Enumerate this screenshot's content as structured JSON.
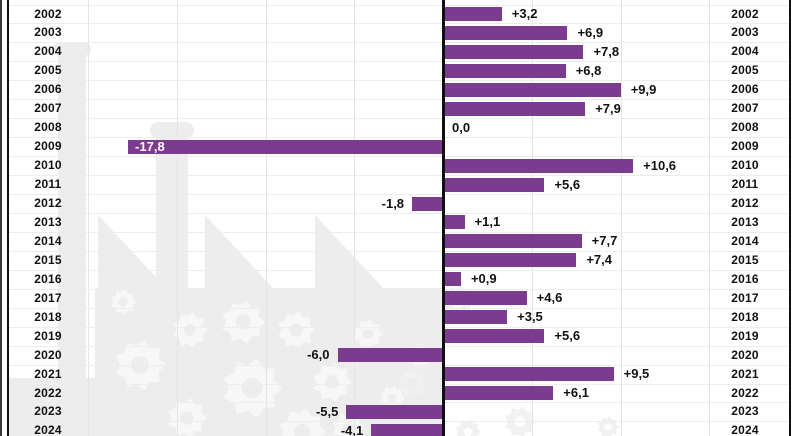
{
  "chart_data": {
    "type": "bar",
    "orientation": "horizontal-diverging",
    "title": "",
    "categories": [
      "2002",
      "2003",
      "2004",
      "2005",
      "2006",
      "2007",
      "2008",
      "2009",
      "2010",
      "2011",
      "2012",
      "2013",
      "2014",
      "2015",
      "2016",
      "2017",
      "2018",
      "2019",
      "2020",
      "2021",
      "2022",
      "2023",
      "2024"
    ],
    "values": [
      3.2,
      6.9,
      7.8,
      6.8,
      9.9,
      7.9,
      0.0,
      -17.8,
      10.6,
      5.6,
      -1.8,
      1.1,
      7.7,
      7.4,
      0.9,
      4.6,
      3.5,
      5.6,
      -6.0,
      9.5,
      6.1,
      -5.5,
      -4.1
    ],
    "value_labels": [
      "+3,2",
      "+6,9",
      "+7,8",
      "+6,8",
      "+9,9",
      "+7,9",
      "0,0",
      "-17,8",
      "+10,6",
      "+5,6",
      "-1,8",
      "+1,1",
      "+7,7",
      "+7,4",
      "+0,9",
      "+4,6",
      "+3,5",
      "+5,6",
      "-6,0",
      "+9,5",
      "+6,1",
      "-5,5",
      "-4,1"
    ],
    "decimal_separator": ",",
    "xlim": [
      -20,
      20
    ],
    "gridline_step": 5,
    "grid": true,
    "legend": "none",
    "year_labels_both_sides": true
  },
  "colors": {
    "bar": "#7b3c90",
    "axis": "#101010",
    "frame": "#101010",
    "outer_edge": "#3a3a3a",
    "grid_vertical": "#e4e4e4",
    "grid_horizontal": "#ededed",
    "text": "#111111",
    "label_inside_bar": "#ffffff",
    "watermark": "#ededed",
    "watermark_gear": "#f7f7f7",
    "watermark_gear_light": "#f1f1f1",
    "background": "#ffffff"
  }
}
